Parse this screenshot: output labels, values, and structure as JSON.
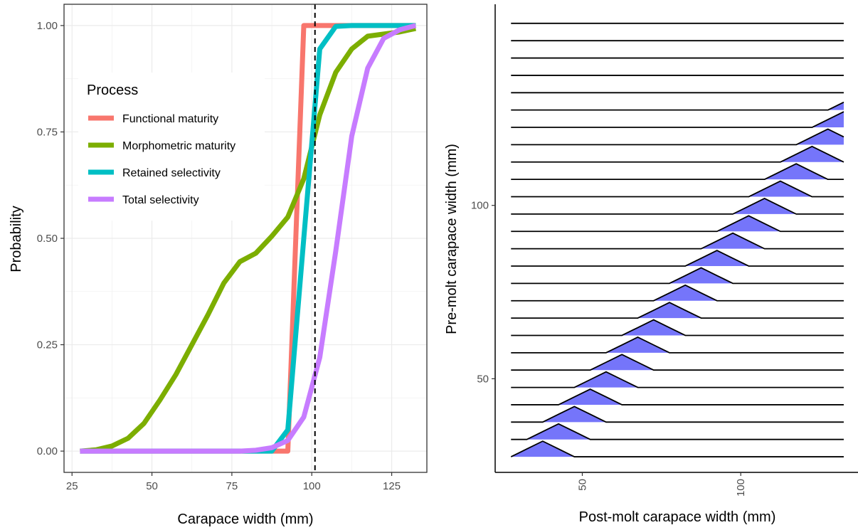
{
  "chart_data": [
    {
      "type": "line",
      "xlabel": "Carapace width (mm)",
      "ylabel": "Probability",
      "xlim": [
        22.5,
        136
      ],
      "ylim": [
        -0.05,
        1.05
      ],
      "x_ticks": [
        25,
        50,
        75,
        100,
        125
      ],
      "x_tick_labels": [
        "25",
        "50",
        "75",
        "100",
        "125"
      ],
      "y_ticks": [
        0,
        0.25,
        0.5,
        0.75,
        1
      ],
      "y_tick_labels": [
        "0.00",
        "0.25",
        "0.50",
        "0.75",
        "1.00"
      ],
      "grid": true,
      "legend_title": "Process",
      "legend_position": "top-left",
      "vline": {
        "x": 101,
        "style": "dashed",
        "color": "#000000"
      },
      "series": [
        {
          "name": "Functional maturity",
          "color": "#F8766D",
          "x": [
            27.5,
            32.5,
            37.5,
            42.5,
            47.5,
            52.5,
            57.5,
            62.5,
            67.5,
            72.5,
            77.5,
            82.5,
            87.5,
            92.5,
            97.5,
            102.5,
            107.5,
            112.5,
            117.5,
            122.5,
            127.5,
            132.5
          ],
          "y": [
            0,
            0,
            0,
            0,
            0,
            0,
            0,
            0,
            0,
            0,
            0,
            0,
            0,
            0,
            1,
            1,
            1,
            1,
            1,
            1,
            1,
            1
          ]
        },
        {
          "name": "Morphometric maturity",
          "color": "#7CAE00",
          "x": [
            27.5,
            32.5,
            37.5,
            42.5,
            47.5,
            52.5,
            57.5,
            62.5,
            67.5,
            72.5,
            77.5,
            82.5,
            87.5,
            92.5,
            97.5,
            102.5,
            107.5,
            112.5,
            117.5,
            122.5,
            127.5,
            132.5
          ],
          "y": [
            0,
            0.003,
            0.012,
            0.03,
            0.065,
            0.12,
            0.18,
            0.25,
            0.32,
            0.395,
            0.445,
            0.465,
            0.505,
            0.55,
            0.64,
            0.79,
            0.89,
            0.945,
            0.975,
            0.98,
            0.985,
            0.993
          ]
        },
        {
          "name": "Retained selectivity",
          "color": "#00BFC4",
          "x": [
            27.5,
            32.5,
            37.5,
            42.5,
            47.5,
            52.5,
            57.5,
            62.5,
            67.5,
            72.5,
            77.5,
            82.5,
            87.5,
            92.5,
            97.5,
            102.5,
            107.5,
            112.5,
            117.5,
            122.5,
            127.5,
            132.5
          ],
          "y": [
            0,
            0,
            0,
            0,
            0,
            0,
            0,
            0,
            0,
            0,
            0,
            0,
            0,
            0.05,
            0.5,
            0.945,
            0.998,
            1,
            1,
            1,
            1,
            1
          ]
        },
        {
          "name": "Total selectivity",
          "color": "#C77CFF",
          "x": [
            27.5,
            32.5,
            37.5,
            42.5,
            47.5,
            52.5,
            57.5,
            62.5,
            67.5,
            72.5,
            77.5,
            82.5,
            87.5,
            92.5,
            97.5,
            102.5,
            107.5,
            112.5,
            117.5,
            122.5,
            127.5,
            132.5
          ],
          "y": [
            0,
            0,
            0,
            0,
            0,
            0,
            0,
            0,
            0,
            0,
            0,
            0.002,
            0.008,
            0.025,
            0.08,
            0.22,
            0.47,
            0.74,
            0.9,
            0.97,
            0.99,
            1
          ]
        }
      ]
    },
    {
      "type": "ridgeline",
      "xlabel": "Post-molt carapace width (mm)",
      "ylabel": "Pre-molt carapace width (mm)",
      "xlim": [
        22.5,
        137
      ],
      "ylim": [
        23,
        158
      ],
      "x_ticks": [
        50,
        100
      ],
      "x_tick_labels": [
        "50",
        "100"
      ],
      "y_ticks": [
        50,
        100
      ],
      "y_tick_labels": [
        "50",
        "100"
      ],
      "ridge_x_range": [
        27.5,
        132.5
      ],
      "fill": "#7575FA",
      "line_color": "#000000",
      "ridges": [
        {
          "pre_molt": 27.5,
          "post_x": [
            27.5,
            32.5,
            37.5,
            42.5,
            47.5
          ],
          "height": [
            0.0,
            0.12,
            0.24,
            0.12,
            0.0
          ]
        },
        {
          "pre_molt": 32.5,
          "post_x": [
            32.5,
            37.5,
            42.5,
            47.5,
            52.5
          ],
          "height": [
            0.0,
            0.12,
            0.24,
            0.12,
            0.0
          ]
        },
        {
          "pre_molt": 37.5,
          "post_x": [
            37.5,
            42.5,
            47.5,
            52.5,
            57.5
          ],
          "height": [
            0.0,
            0.12,
            0.24,
            0.12,
            0.0
          ]
        },
        {
          "pre_molt": 42.5,
          "post_x": [
            42.5,
            47.5,
            52.5,
            57.5,
            62.5
          ],
          "height": [
            0.0,
            0.12,
            0.24,
            0.12,
            0.0
          ]
        },
        {
          "pre_molt": 47.5,
          "post_x": [
            47.5,
            52.5,
            57.5,
            62.5,
            67.5
          ],
          "height": [
            0.0,
            0.12,
            0.24,
            0.12,
            0.0
          ]
        },
        {
          "pre_molt": 52.5,
          "post_x": [
            52.5,
            57.5,
            62.5,
            67.5,
            72.5
          ],
          "height": [
            0.0,
            0.12,
            0.24,
            0.12,
            0.0
          ]
        },
        {
          "pre_molt": 57.5,
          "post_x": [
            57.5,
            62.5,
            67.5,
            72.5,
            77.5
          ],
          "height": [
            0.0,
            0.12,
            0.24,
            0.12,
            0.0
          ]
        },
        {
          "pre_molt": 62.5,
          "post_x": [
            62.5,
            67.5,
            72.5,
            77.5,
            82.5
          ],
          "height": [
            0.0,
            0.12,
            0.24,
            0.12,
            0.0
          ]
        },
        {
          "pre_molt": 67.5,
          "post_x": [
            67.5,
            72.5,
            77.5,
            82.5,
            87.5
          ],
          "height": [
            0.0,
            0.12,
            0.24,
            0.12,
            0.0
          ]
        },
        {
          "pre_molt": 72.5,
          "post_x": [
            72.5,
            77.5,
            82.5,
            87.5,
            92.5
          ],
          "height": [
            0.0,
            0.12,
            0.24,
            0.12,
            0.0
          ]
        },
        {
          "pre_molt": 77.5,
          "post_x": [
            77.5,
            82.5,
            87.5,
            92.5,
            97.5
          ],
          "height": [
            0.0,
            0.12,
            0.24,
            0.12,
            0.0
          ]
        },
        {
          "pre_molt": 82.5,
          "post_x": [
            82.5,
            87.5,
            92.5,
            97.5,
            102.5
          ],
          "height": [
            0.0,
            0.12,
            0.24,
            0.12,
            0.0
          ]
        },
        {
          "pre_molt": 87.5,
          "post_x": [
            87.5,
            92.5,
            97.5,
            102.5,
            107.5
          ],
          "height": [
            0.0,
            0.12,
            0.24,
            0.12,
            0.0
          ]
        },
        {
          "pre_molt": 92.5,
          "post_x": [
            92.5,
            97.5,
            102.5,
            107.5,
            112.5
          ],
          "height": [
            0.0,
            0.12,
            0.24,
            0.12,
            0.0
          ]
        },
        {
          "pre_molt": 97.5,
          "post_x": [
            97.5,
            102.5,
            107.5,
            112.5,
            117.5
          ],
          "height": [
            0.0,
            0.12,
            0.24,
            0.12,
            0.0
          ]
        },
        {
          "pre_molt": 102.5,
          "post_x": [
            102.5,
            107.5,
            112.5,
            117.5,
            122.5
          ],
          "height": [
            0.0,
            0.12,
            0.24,
            0.12,
            0.0
          ]
        },
        {
          "pre_molt": 107.5,
          "post_x": [
            107.5,
            112.5,
            117.5,
            122.5,
            127.5
          ],
          "height": [
            0.0,
            0.12,
            0.24,
            0.12,
            0.0
          ]
        },
        {
          "pre_molt": 112.5,
          "post_x": [
            112.5,
            117.5,
            122.5,
            127.5,
            132.5
          ],
          "height": [
            0.0,
            0.12,
            0.24,
            0.12,
            0.0
          ]
        },
        {
          "pre_molt": 117.5,
          "post_x": [
            117.5,
            122.5,
            127.5,
            132.5
          ],
          "height": [
            0.0,
            0.12,
            0.24,
            0.12
          ]
        },
        {
          "pre_molt": 122.5,
          "post_x": [
            122.5,
            127.5,
            132.5
          ],
          "height": [
            0.0,
            0.12,
            0.24
          ]
        },
        {
          "pre_molt": 127.5,
          "post_x": [
            127.5,
            132.5
          ],
          "height": [
            0.0,
            0.12
          ]
        },
        {
          "pre_molt": 132.5,
          "post_x": [
            132.5
          ],
          "height": [
            0.0
          ]
        },
        {
          "pre_molt": 137.5,
          "post_x": [
            132.5
          ],
          "height": [
            0.0
          ]
        },
        {
          "pre_molt": 142.5,
          "post_x": [
            132.5
          ],
          "height": [
            0.0
          ]
        },
        {
          "pre_molt": 147.5,
          "post_x": [
            132.5
          ],
          "height": [
            0.0
          ]
        },
        {
          "pre_molt": 152.5,
          "post_x": [
            132.5
          ],
          "height": [
            0.0
          ]
        }
      ]
    }
  ]
}
